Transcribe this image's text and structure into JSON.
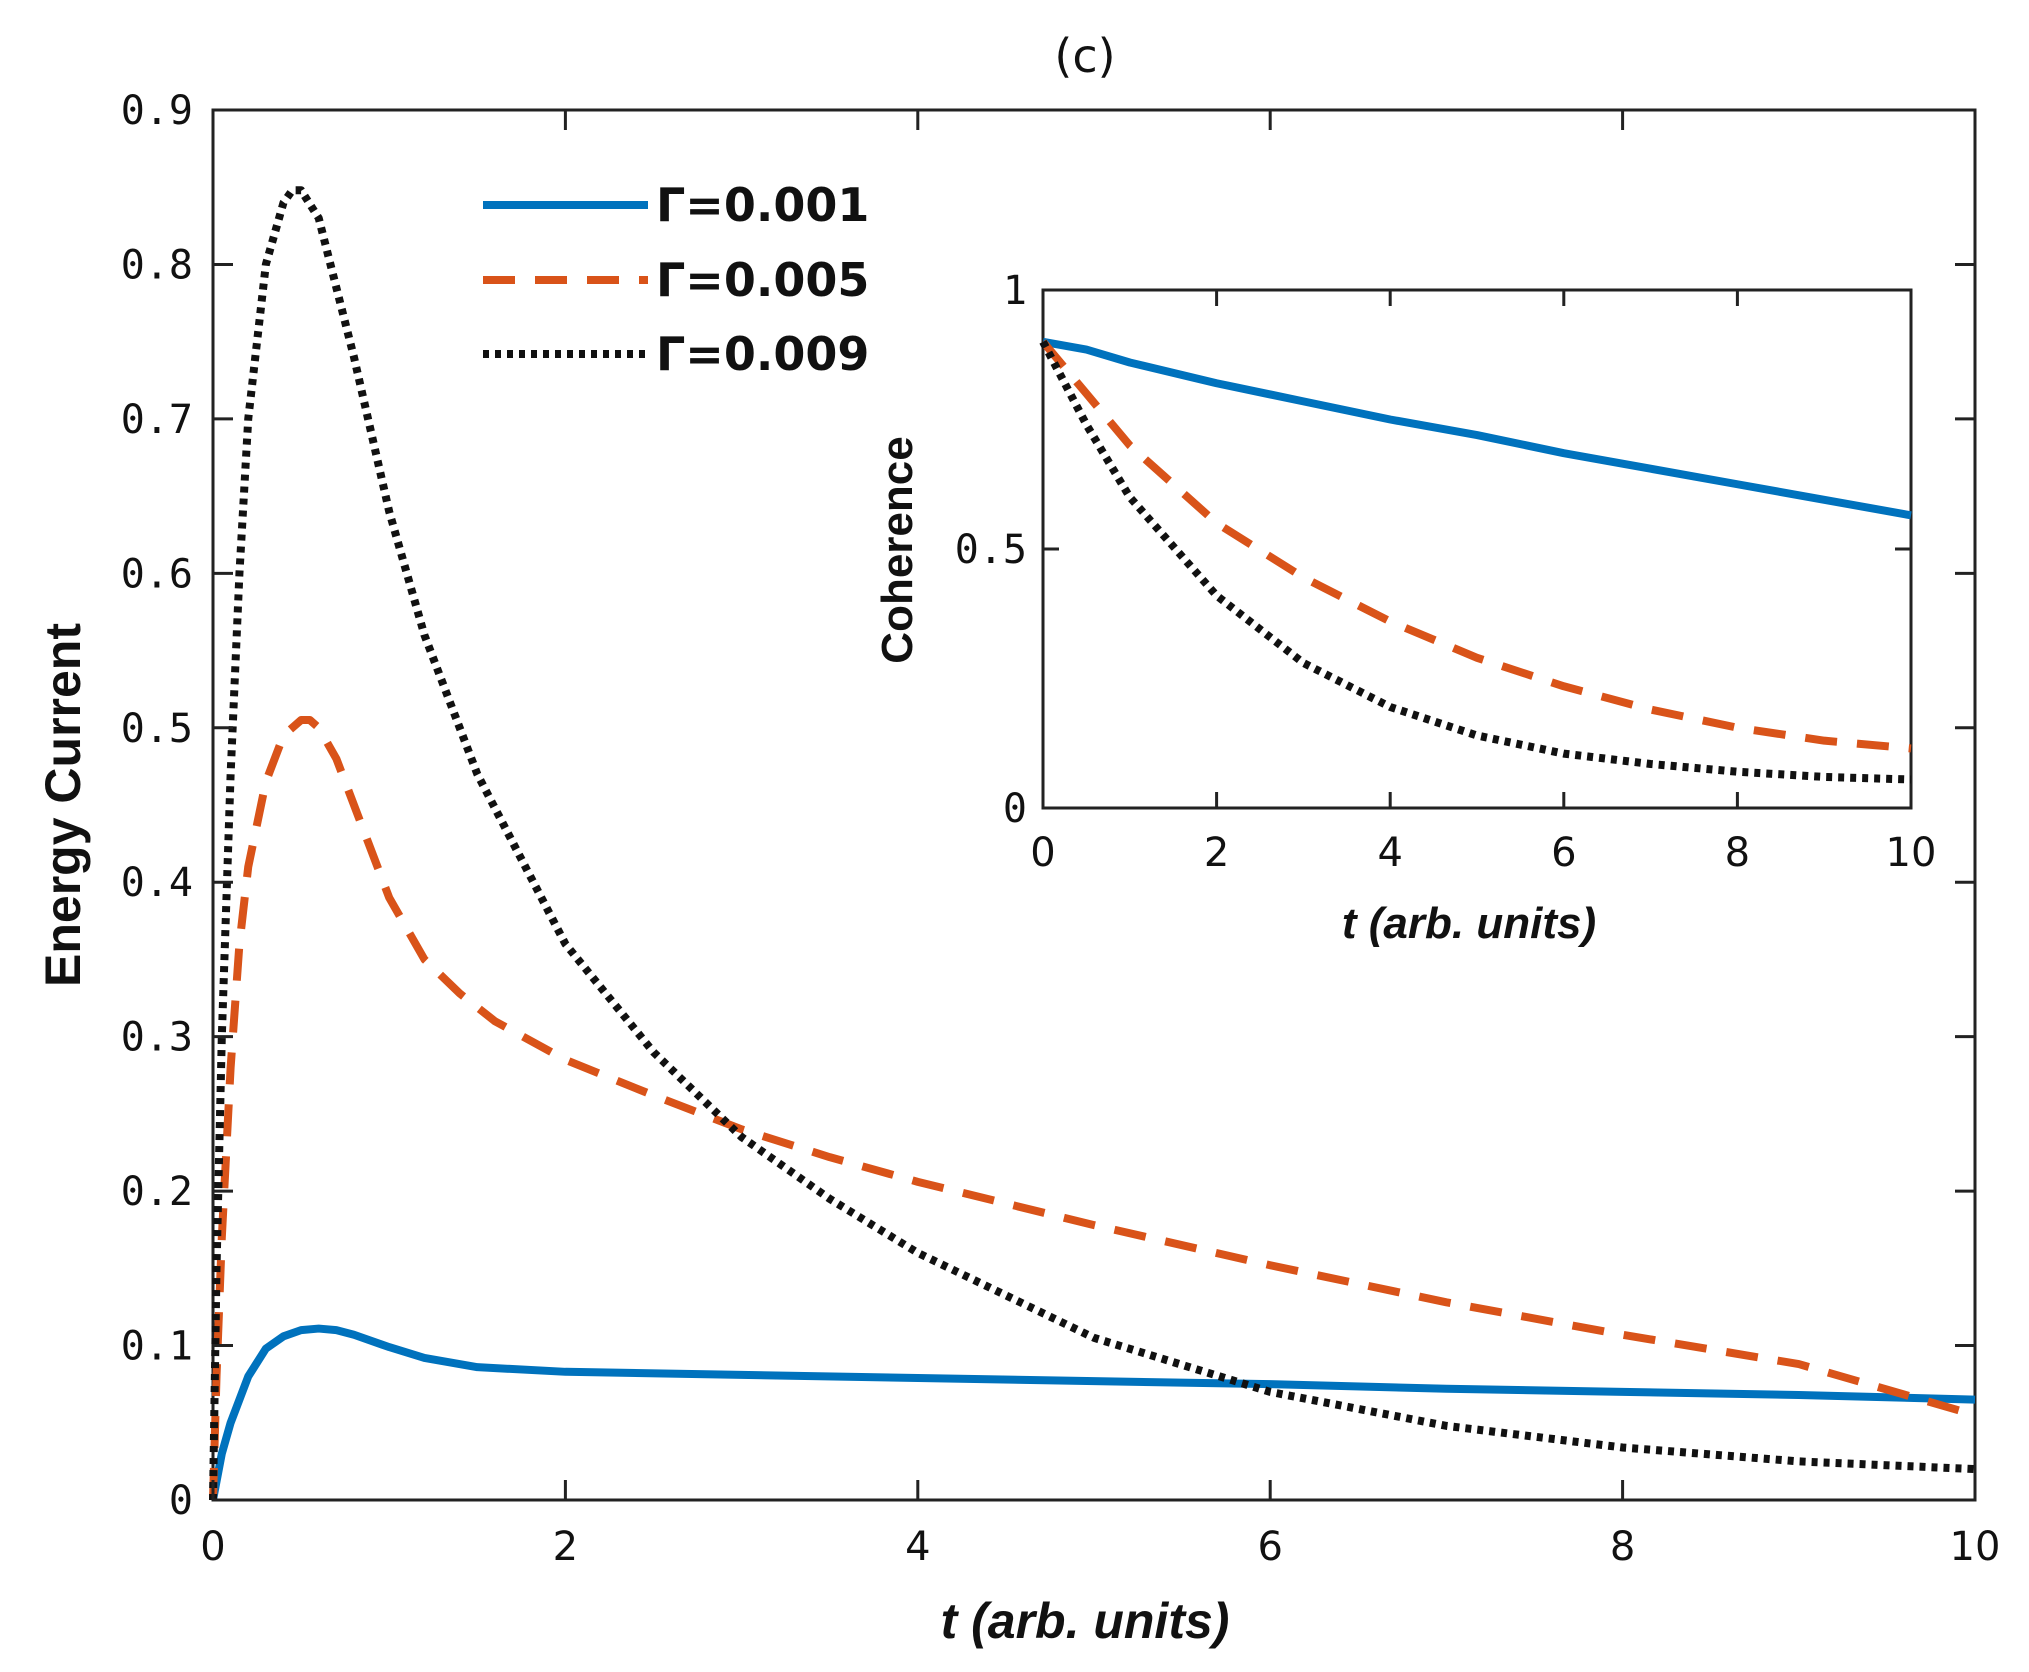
{
  "chart_data": [
    {
      "name": "main",
      "type": "line",
      "title": "(c)",
      "xlabel": "t (arb. units)",
      "ylabel": "Energy Current",
      "xlim": [
        0,
        10
      ],
      "ylim": [
        0,
        0.9
      ],
      "xticks": [
        0,
        2,
        4,
        6,
        8,
        10
      ],
      "xtick_labels": [
        "0",
        "2",
        "4",
        "6",
        "8",
        "10"
      ],
      "yticks": [
        0,
        0.1,
        0.2,
        0.3,
        0.4,
        0.5,
        0.6,
        0.7,
        0.8,
        0.9
      ],
      "ytick_labels": [
        "0",
        "0.1",
        "0.2",
        "0.3",
        "0.4",
        "0.5",
        "0.6",
        "0.7",
        "0.8",
        "0.9"
      ],
      "grid": false,
      "legend_position": "top-center",
      "series": [
        {
          "name": "Γ=0.001",
          "color": "#0072BD",
          "style": "solid",
          "x": [
            0,
            0.05,
            0.1,
            0.2,
            0.3,
            0.4,
            0.5,
            0.6,
            0.7,
            0.8,
            1.0,
            1.2,
            1.5,
            2.0,
            3.0,
            4.0,
            5.0,
            6.0,
            7.0,
            8.0,
            9.0,
            10.0
          ],
          "values": [
            0,
            0.03,
            0.05,
            0.08,
            0.098,
            0.106,
            0.11,
            0.111,
            0.11,
            0.107,
            0.099,
            0.092,
            0.086,
            0.083,
            0.081,
            0.079,
            0.077,
            0.075,
            0.072,
            0.07,
            0.068,
            0.065
          ]
        },
        {
          "name": "Γ=0.005",
          "color": "#D95319",
          "style": "dashed",
          "x": [
            0,
            0.02,
            0.05,
            0.1,
            0.15,
            0.2,
            0.3,
            0.4,
            0.5,
            0.55,
            0.6,
            0.7,
            0.8,
            1.0,
            1.2,
            1.4,
            1.6,
            2.0,
            2.5,
            3.0,
            3.5,
            4.0,
            5.0,
            6.0,
            7.0,
            8.0,
            9.0,
            10.0
          ],
          "values": [
            0,
            0.08,
            0.17,
            0.28,
            0.36,
            0.41,
            0.465,
            0.495,
            0.505,
            0.505,
            0.5,
            0.48,
            0.45,
            0.39,
            0.35,
            0.328,
            0.31,
            0.285,
            0.262,
            0.24,
            0.222,
            0.206,
            0.178,
            0.152,
            0.128,
            0.107,
            0.088,
            0.055
          ]
        },
        {
          "name": "Γ=0.009",
          "color": "#111111",
          "style": "dotted",
          "x": [
            0,
            0.02,
            0.05,
            0.1,
            0.15,
            0.2,
            0.3,
            0.4,
            0.45,
            0.5,
            0.6,
            0.8,
            1.0,
            1.2,
            1.5,
            2.0,
            2.5,
            3.0,
            3.5,
            4.0,
            5.0,
            6.0,
            7.0,
            8.0,
            9.0,
            10.0
          ],
          "values": [
            0,
            0.15,
            0.3,
            0.47,
            0.6,
            0.7,
            0.8,
            0.84,
            0.848,
            0.848,
            0.83,
            0.74,
            0.64,
            0.56,
            0.47,
            0.36,
            0.29,
            0.235,
            0.195,
            0.16,
            0.105,
            0.07,
            0.048,
            0.034,
            0.025,
            0.02
          ]
        }
      ]
    },
    {
      "name": "inset",
      "type": "line",
      "title": "",
      "xlabel": "t (arb. units)",
      "ylabel": "Coherence",
      "xlim": [
        0,
        10
      ],
      "ylim": [
        0,
        1
      ],
      "xticks": [
        0,
        2,
        4,
        6,
        8,
        10
      ],
      "xtick_labels": [
        "0",
        "2",
        "4",
        "6",
        "8",
        "10"
      ],
      "yticks": [
        0,
        0.5,
        1
      ],
      "ytick_labels": [
        "0",
        "0.5",
        "1"
      ],
      "grid": false,
      "series": [
        {
          "name": "Γ=0.001",
          "color": "#0072BD",
          "style": "solid",
          "x": [
            0,
            0.5,
            1,
            2,
            3,
            4,
            5,
            6,
            7,
            8,
            9,
            10
          ],
          "values": [
            0.9,
            0.885,
            0.86,
            0.82,
            0.785,
            0.75,
            0.72,
            0.685,
            0.655,
            0.625,
            0.595,
            0.565
          ]
        },
        {
          "name": "Γ=0.005",
          "color": "#D95319",
          "style": "dashed",
          "x": [
            0,
            0.5,
            1,
            2,
            3,
            4,
            5,
            6,
            7,
            8,
            9,
            10
          ],
          "values": [
            0.9,
            0.8,
            0.7,
            0.55,
            0.445,
            0.36,
            0.29,
            0.235,
            0.19,
            0.155,
            0.13,
            0.115
          ]
        },
        {
          "name": "Γ=0.009",
          "color": "#111111",
          "style": "dotted",
          "x": [
            0,
            0.5,
            1,
            2,
            3,
            4,
            5,
            6,
            7,
            8,
            9,
            10
          ],
          "values": [
            0.9,
            0.74,
            0.6,
            0.41,
            0.28,
            0.195,
            0.14,
            0.105,
            0.085,
            0.07,
            0.06,
            0.055
          ]
        }
      ]
    }
  ],
  "legend": {
    "items": [
      {
        "label": "Γ=0.001",
        "color": "#0072BD",
        "style": "solid"
      },
      {
        "label": "Γ=0.005",
        "color": "#D95319",
        "style": "dashed"
      },
      {
        "label": "Γ=0.009",
        "color": "#111111",
        "style": "dotted"
      }
    ]
  }
}
